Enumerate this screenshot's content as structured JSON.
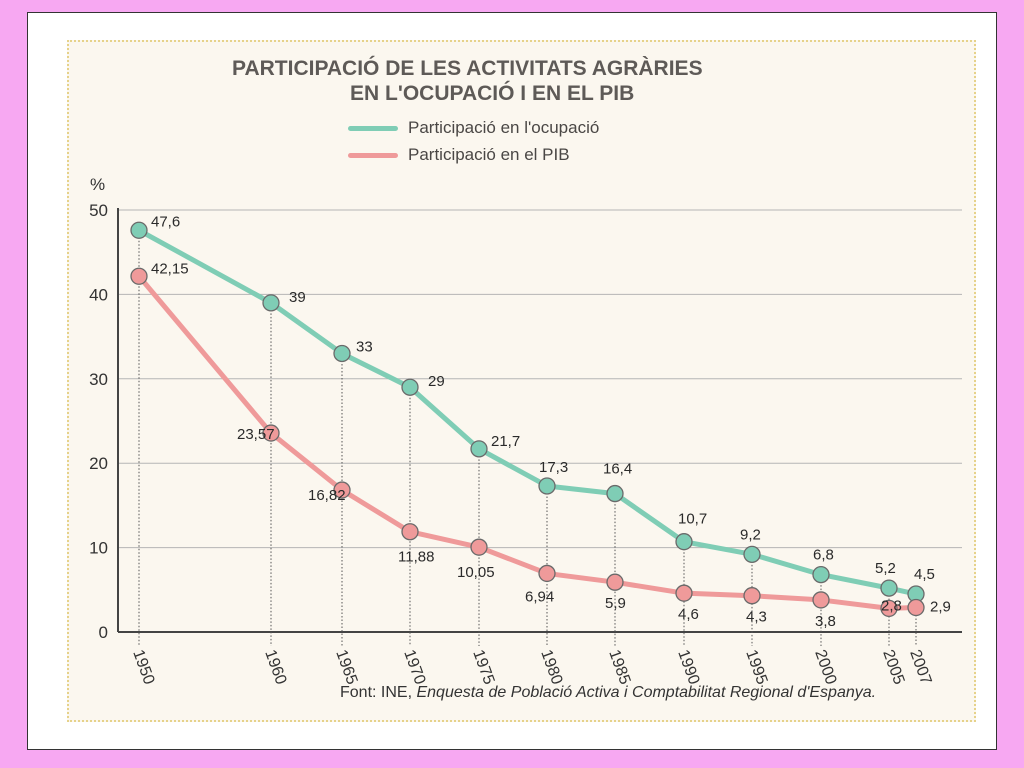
{
  "chart_data": {
    "type": "line",
    "title": "PARTICIPACIÓ DE LES ACTIVITATS AGRÀRIES",
    "subtitle": "EN L'OCUPACIÓ I EN EL PIB",
    "ylabel": "%",
    "xlabel": "",
    "ylim": [
      0,
      50
    ],
    "yticks": [
      "0",
      "10",
      "20",
      "30",
      "40",
      "50"
    ],
    "grid": true,
    "legend_position": "top",
    "x": [
      1950,
      1960,
      1965,
      1970,
      1975,
      1980,
      1985,
      1990,
      1995,
      2000,
      2005,
      2007
    ],
    "x_labels": [
      "1950",
      "1960",
      "1965",
      "1970",
      "1975",
      "1980",
      "1985",
      "1990",
      "1995",
      "2000",
      "2005",
      "2007"
    ],
    "series": [
      {
        "name": "Participació en l'ocupació",
        "color": "#7fcdb5",
        "values": [
          47.6,
          39,
          33,
          29,
          21.7,
          17.3,
          16.4,
          10.7,
          9.2,
          6.8,
          5.2,
          4.5
        ],
        "labels": [
          "47,6",
          "39",
          "33",
          "29",
          "21,7",
          "17,3",
          "16,4",
          "10,7",
          "9,2",
          "6,8",
          "5,2",
          "4,5"
        ]
      },
      {
        "name": "Participació en el PIB",
        "color": "#ef9a9a",
        "values": [
          42.15,
          23.57,
          16.82,
          11.88,
          10.05,
          6.94,
          5.9,
          4.6,
          4.3,
          3.8,
          2.8,
          2.9
        ],
        "labels": [
          "42,15",
          "23,57",
          "16,82",
          "11,88",
          "10,05",
          "6,94",
          "5,9",
          "4,6",
          "4,3",
          "3,8",
          "2,8",
          "2,9"
        ]
      }
    ],
    "source_prefix": "Font: INE, ",
    "source_italic": "Enquesta de Població Activa i Comptabilitat Regional d'Espanya."
  }
}
